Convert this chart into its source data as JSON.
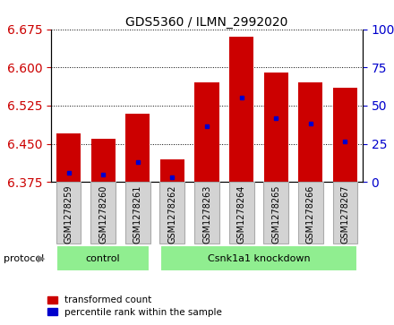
{
  "title": "GDS5360 / ILMN_2992020",
  "samples": [
    "GSM1278259",
    "GSM1278260",
    "GSM1278261",
    "GSM1278262",
    "GSM1278263",
    "GSM1278264",
    "GSM1278265",
    "GSM1278266",
    "GSM1278267"
  ],
  "bar_values": [
    6.47,
    6.46,
    6.51,
    6.42,
    6.57,
    6.66,
    6.59,
    6.57,
    6.56
  ],
  "bar_base": 6.375,
  "percentile_values": [
    6.393,
    6.39,
    6.415,
    6.385,
    6.485,
    6.54,
    6.5,
    6.49,
    6.455
  ],
  "bar_color": "#cc0000",
  "blue_color": "#0000cc",
  "ylim_left": [
    6.375,
    6.675
  ],
  "ylim_right": [
    0,
    100
  ],
  "yticks_left": [
    6.375,
    6.45,
    6.525,
    6.6,
    6.675
  ],
  "yticks_right": [
    0,
    25,
    50,
    75,
    100
  ],
  "ylabel_left_color": "#cc0000",
  "ylabel_right_color": "#0000cc",
  "control_indices": [
    0,
    1,
    2
  ],
  "knockdown_indices": [
    3,
    4,
    5,
    6,
    7,
    8
  ],
  "control_label": "control",
  "knockdown_label": "Csnk1a1 knockdown",
  "group_color": "#90ee90",
  "protocol_label": "protocol",
  "legend_red": "transformed count",
  "legend_blue": "percentile rank within the sample",
  "bar_width": 0.7,
  "tick_area_color": "#d3d3d3",
  "col_sep_color": "#aaaaaa"
}
